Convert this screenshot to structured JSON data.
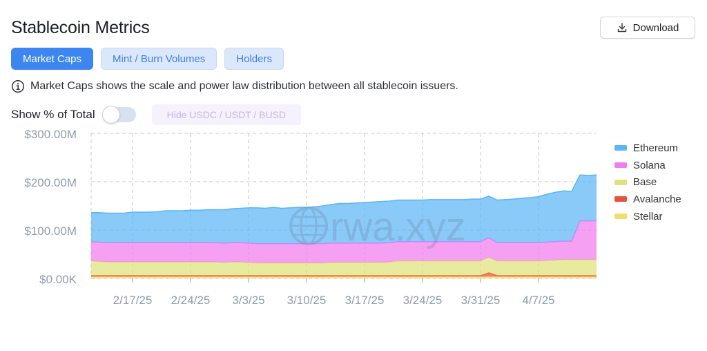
{
  "header": {
    "title": "Stablecoin Metrics",
    "download_label": "Download"
  },
  "tabs": [
    {
      "label": "Market Caps",
      "active": true
    },
    {
      "label": "Mint / Burn Volumes",
      "active": false
    },
    {
      "label": "Holders",
      "active": false
    }
  ],
  "info_text": "Market Caps shows the scale and power law distribution between all stablecoin issuers.",
  "controls": {
    "show_pct_label": "Show % of Total",
    "show_pct_enabled": false,
    "hide_button_label": "Hide USDC / USDT / BUSD"
  },
  "watermark": "rwa.xyz",
  "colors": {
    "accent": "#3d86f0",
    "ethereum": "#5cb5f7",
    "solana": "#f37cf0",
    "base": "#dfe27a",
    "avalanche": "#e8503f",
    "stellar": "#f2dc6a"
  },
  "chart_data": {
    "type": "area",
    "stacked": true,
    "title": "",
    "xlabel": "",
    "ylabel": "",
    "ylim": [
      0,
      300000000
    ],
    "y_ticks": [
      "$0.00K",
      "$100.00M",
      "$200.00M",
      "$300.00M"
    ],
    "x_ticks": [
      "2/17/25",
      "2/24/25",
      "3/3/25",
      "3/10/25",
      "3/17/25",
      "3/24/25",
      "3/31/25",
      "4/7/25"
    ],
    "grid": true,
    "legend_position": "right",
    "x": [
      "2/12/25",
      "2/13/25",
      "2/14/25",
      "2/15/25",
      "2/16/25",
      "2/17/25",
      "2/18/25",
      "2/19/25",
      "2/20/25",
      "2/21/25",
      "2/22/25",
      "2/23/25",
      "2/24/25",
      "2/25/25",
      "2/26/25",
      "2/27/25",
      "2/28/25",
      "3/1/25",
      "3/2/25",
      "3/3/25",
      "3/4/25",
      "3/5/25",
      "3/6/25",
      "3/7/25",
      "3/8/25",
      "3/9/25",
      "3/10/25",
      "3/11/25",
      "3/12/25",
      "3/13/25",
      "3/14/25",
      "3/15/25",
      "3/16/25",
      "3/17/25",
      "3/18/25",
      "3/19/25",
      "3/20/25",
      "3/21/25",
      "3/22/25",
      "3/23/25",
      "3/24/25",
      "3/25/25",
      "3/26/25",
      "3/27/25",
      "3/28/25",
      "3/29/25",
      "3/30/25",
      "3/31/25",
      "4/1/25",
      "4/2/25",
      "4/3/25",
      "4/4/25",
      "4/5/25",
      "4/6/25",
      "4/7/25",
      "4/8/25",
      "4/9/25",
      "4/10/25",
      "4/11/25",
      "4/12/25",
      "4/13/25",
      "4/14/25"
    ],
    "series": [
      {
        "name": "Stellar",
        "values": [
          4,
          4,
          4,
          4,
          4,
          4,
          4,
          4,
          4,
          4,
          4,
          4,
          4,
          4,
          4,
          4,
          4,
          4,
          4,
          4,
          4,
          4,
          4,
          4,
          4,
          4,
          4,
          4,
          4,
          4,
          4,
          4,
          4,
          4,
          4,
          4,
          4,
          4,
          4,
          4,
          4,
          4,
          4,
          4,
          4,
          4,
          4,
          4,
          4,
          4,
          4,
          4,
          4,
          4,
          4,
          4,
          4,
          4,
          4,
          4,
          4,
          4
        ]
      },
      {
        "name": "Avalanche",
        "values": [
          2,
          2,
          2,
          2,
          2,
          2,
          2,
          2,
          2,
          2,
          2,
          2,
          2,
          2,
          2,
          2,
          2,
          2,
          2,
          2,
          2,
          2,
          2,
          2,
          2,
          2,
          2,
          2,
          2,
          2,
          2,
          2,
          2,
          2,
          2,
          2,
          2,
          2,
          2,
          2,
          2,
          2,
          2,
          2,
          2,
          2,
          2,
          2,
          8,
          2,
          2,
          2,
          2,
          2,
          2,
          2,
          2,
          2,
          2,
          2,
          2,
          2
        ]
      },
      {
        "name": "Base",
        "values": [
          30,
          29,
          28,
          28,
          28,
          28,
          28,
          28,
          28,
          28,
          28,
          28,
          28,
          28,
          28,
          28,
          27,
          28,
          28,
          27,
          26,
          26,
          26,
          26,
          26,
          26,
          26,
          26,
          26,
          27,
          27,
          27,
          27,
          27,
          27,
          27,
          28,
          30,
          30,
          30,
          30,
          30,
          30,
          30,
          30,
          30,
          30,
          30,
          32,
          30,
          30,
          30,
          30,
          30,
          30,
          31,
          32,
          33,
          33,
          33,
          33,
          33
        ]
      },
      {
        "name": "Solana",
        "values": [
          40,
          40,
          40,
          40,
          40,
          40,
          40,
          40,
          40,
          40,
          40,
          40,
          40,
          40,
          40,
          40,
          40,
          40,
          40,
          40,
          40,
          40,
          40,
          40,
          40,
          40,
          40,
          40,
          40,
          40,
          40,
          40,
          40,
          40,
          40,
          40,
          40,
          40,
          40,
          40,
          40,
          40,
          40,
          40,
          40,
          40,
          40,
          40,
          40,
          38,
          38,
          38,
          38,
          38,
          38,
          38,
          38,
          38,
          38,
          80,
          80,
          80
        ]
      },
      {
        "name": "Ethereum",
        "values": [
          60,
          61,
          61,
          61,
          61,
          63,
          63,
          63,
          64,
          66,
          66,
          66,
          67,
          67,
          68,
          68,
          69,
          70,
          71,
          73,
          74,
          73,
          75,
          73,
          74,
          75,
          75,
          76,
          78,
          80,
          82,
          82,
          83,
          84,
          85,
          86,
          86,
          86,
          86,
          86,
          86,
          87,
          87,
          87,
          87,
          87,
          88,
          88,
          86,
          88,
          89,
          90,
          92,
          93,
          95,
          99,
          102,
          104,
          103,
          95,
          94,
          95
        ]
      }
    ]
  }
}
